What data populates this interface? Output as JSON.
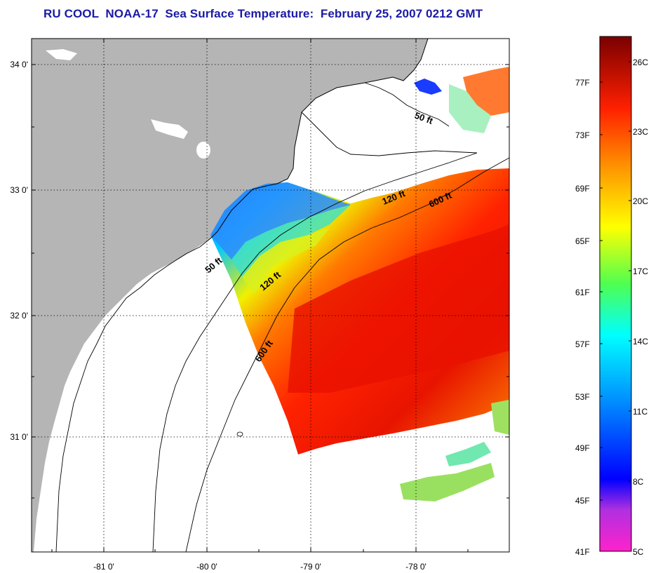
{
  "title": "RU COOL  NOAA-17  Sea Surface Temperature:  February 25, 2007 0212 GMT",
  "map": {
    "lon_labels": [
      "-81 0'",
      "-80 0'",
      "-79 0'",
      "-78 0'"
    ],
    "lat_labels": [
      "34 0'",
      "33 0'",
      "32 0'",
      "31 0'"
    ],
    "contours": [
      {
        "label": "50 ft",
        "name": "contour-50ft-north"
      },
      {
        "label": "120 ft",
        "name": "contour-120ft-north"
      },
      {
        "label": "600 ft",
        "name": "contour-600ft-north"
      },
      {
        "label": "50 ft",
        "name": "contour-50ft-south"
      },
      {
        "label": "120 ft",
        "name": "contour-120ft-south"
      },
      {
        "label": "600 ft",
        "name": "contour-600ft-south"
      }
    ],
    "colors": {
      "land": "#b5b5b5",
      "ocean": "#ffffff",
      "title": "#1a1aa6"
    }
  },
  "colorbar": {
    "fahrenheit": [
      "77F",
      "73F",
      "69F",
      "65F",
      "61F",
      "57F",
      "53F",
      "49F",
      "45F",
      "41F"
    ],
    "celsius": [
      "26C",
      "23C",
      "20C",
      "17C",
      "14C",
      "11C",
      "8C",
      "5C"
    ],
    "range_c": [
      5,
      27
    ]
  }
}
